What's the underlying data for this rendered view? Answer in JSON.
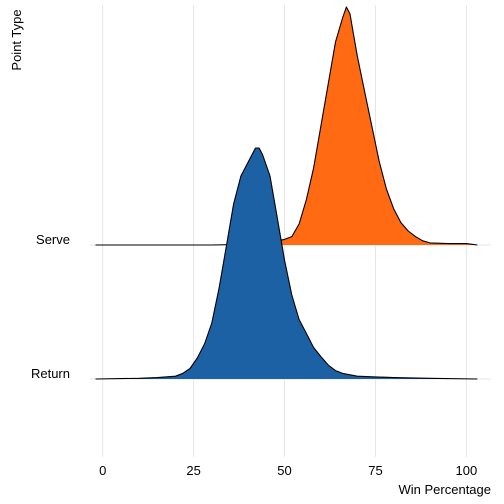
{
  "chart_data": {
    "type": "area",
    "subtype": "ridgeline",
    "xlabel": "Win Percentage",
    "ylabel": "Point Type",
    "xlim": [
      -3.5,
      106.5
    ],
    "x_ticks": [
      0,
      25,
      50,
      75,
      100
    ],
    "grid": "vertical lines only",
    "legend": "none",
    "series": [
      {
        "name": "Serve",
        "color": "#FF6A13",
        "x": [
          -2,
          10,
          20,
          30,
          40,
          45,
          48,
          50,
          52,
          54,
          56,
          58,
          60,
          62,
          64,
          66,
          67,
          68,
          69,
          70,
          72,
          74,
          76,
          78,
          80,
          82,
          84,
          86,
          88,
          90,
          95,
          100,
          103
        ],
        "density": [
          0,
          0,
          0,
          0,
          0.001,
          0.003,
          0.006,
          0.008,
          0.012,
          0.03,
          0.065,
          0.11,
          0.17,
          0.23,
          0.29,
          0.325,
          0.34,
          0.33,
          0.3,
          0.27,
          0.22,
          0.17,
          0.12,
          0.08,
          0.052,
          0.032,
          0.02,
          0.012,
          0.006,
          0.003,
          0.002,
          0.002,
          0
        ]
      },
      {
        "name": "Return",
        "color": "#1D61A5",
        "x": [
          -2,
          10,
          15,
          20,
          22,
          24,
          26,
          28,
          30,
          32,
          34,
          36,
          38,
          40,
          42,
          43,
          44,
          46,
          48,
          50,
          52,
          54,
          56,
          58,
          60,
          62,
          64,
          66,
          70,
          75,
          80,
          90,
          103
        ],
        "density": [
          0,
          0.001,
          0.002,
          0.004,
          0.008,
          0.015,
          0.03,
          0.05,
          0.08,
          0.13,
          0.19,
          0.25,
          0.29,
          0.31,
          0.33,
          0.33,
          0.32,
          0.29,
          0.23,
          0.17,
          0.12,
          0.085,
          0.065,
          0.045,
          0.032,
          0.02,
          0.012,
          0.008,
          0.004,
          0.003,
          0.002,
          0.001,
          0
        ]
      }
    ]
  }
}
